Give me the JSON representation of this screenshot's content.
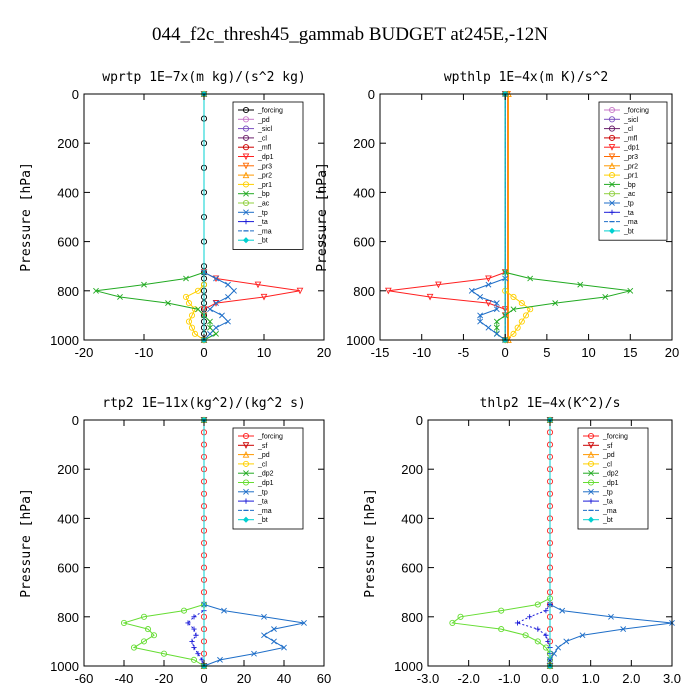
{
  "figure": {
    "title": "044_f2c_thresh45_gammab  BUDGET at245E,-12N",
    "ylabel": "Pressure [hPa]"
  },
  "chart_data": [
    {
      "type": "line",
      "title": "wprtp  1E−7x(m kg)/(s^2 kg)",
      "ylabel": "Pressure [hPa]",
      "xlim": [
        -20,
        20
      ],
      "ylim": [
        1000,
        0
      ],
      "xticks": [
        "-20",
        "-10",
        "0",
        "10",
        "20"
      ],
      "yticks": [
        "0",
        "200",
        "400",
        "600",
        "800",
        "1000"
      ],
      "series": [
        {
          "name": "_forcing",
          "color": "#000000",
          "marker": "o",
          "y": [
            0,
            100,
            200,
            300,
            400,
            500,
            600,
            700,
            725,
            750,
            775,
            800,
            825,
            850,
            875,
            900,
            925,
            950,
            975,
            1000
          ],
          "x": [
            0,
            0,
            0,
            0,
            0,
            0,
            0,
            0,
            0,
            0,
            0,
            0,
            0,
            0,
            0,
            0,
            0,
            0,
            0,
            0
          ]
        },
        {
          "name": "_pd",
          "color": "#c878c8",
          "marker": "o",
          "y": [
            0,
            1000
          ],
          "x": [
            0,
            0
          ]
        },
        {
          "name": "_sicl",
          "color": "#7b4fc0",
          "marker": "o",
          "y": [
            0,
            1000
          ],
          "x": [
            0,
            0
          ]
        },
        {
          "name": "_cl",
          "color": "#6a1f6a",
          "marker": "o",
          "y": [
            0,
            1000
          ],
          "x": [
            0,
            0
          ]
        },
        {
          "name": "_mfl",
          "color": "#cc0000",
          "marker": "o",
          "y": [
            0,
            1000
          ],
          "x": [
            0,
            0
          ]
        },
        {
          "name": "_dp1",
          "color": "#ff2020",
          "marker": "v",
          "y": [
            0,
            725,
            750,
            775,
            800,
            825,
            850,
            875,
            900,
            1000
          ],
          "x": [
            0,
            0,
            2,
            9,
            16,
            10,
            2,
            0,
            0,
            0
          ]
        },
        {
          "name": "_pr3",
          "color": "#ff6a00",
          "marker": "v",
          "y": [
            0,
            1000
          ],
          "x": [
            0,
            0
          ]
        },
        {
          "name": "_pr2",
          "color": "#ff9900",
          "marker": "^",
          "y": [
            0,
            1000
          ],
          "x": [
            0,
            0
          ]
        },
        {
          "name": "_pr1",
          "color": "#ffd000",
          "marker": "o",
          "y": [
            0,
            775,
            800,
            825,
            850,
            875,
            900,
            925,
            950,
            975,
            1000
          ],
          "x": [
            0,
            0,
            -1,
            -3,
            -2.5,
            -1.5,
            -2,
            -2.5,
            -2,
            -1.5,
            0
          ]
        },
        {
          "name": "_bp",
          "color": "#22aa22",
          "marker": "x",
          "y": [
            0,
            725,
            750,
            775,
            800,
            825,
            850,
            875,
            900,
            925,
            950,
            975,
            1000
          ],
          "x": [
            0,
            0,
            -3,
            -10,
            -18,
            -14,
            -6,
            -1,
            0,
            1,
            1,
            2,
            0
          ]
        },
        {
          "name": "_ac",
          "color": "#90d040",
          "marker": "o",
          "y": [
            0,
            1000
          ],
          "x": [
            0,
            0
          ]
        },
        {
          "name": "_tp",
          "color": "#1e6ec8",
          "marker": "x",
          "y": [
            0,
            725,
            750,
            775,
            800,
            825,
            850,
            875,
            900,
            925,
            950,
            975,
            1000
          ],
          "x": [
            0,
            0,
            2,
            4,
            5,
            4,
            2,
            1,
            3,
            4,
            2,
            1,
            0
          ]
        },
        {
          "name": "_ta",
          "color": "#1a1ad8",
          "marker": "+",
          "y": [
            0,
            1000
          ],
          "x": [
            0,
            0
          ]
        },
        {
          "name": "_ma",
          "color": "#1e6ec8",
          "marker": "-",
          "y": [
            0,
            1000
          ],
          "x": [
            0,
            0
          ]
        },
        {
          "name": "_bt",
          "color": "#00d0d0",
          "marker": "d",
          "y": [
            0,
            1000
          ],
          "x": [
            0,
            0
          ]
        }
      ]
    },
    {
      "type": "line",
      "title": "wpthlp  1E−4x(m K)/s^2",
      "ylabel": "Pressure [hPa]",
      "xlim": [
        -15,
        20
      ],
      "ylim": [
        1000,
        0
      ],
      "xticks": [
        "-15",
        "-10",
        "-5",
        "0",
        "5",
        "10",
        "15",
        "20"
      ],
      "yticks": [
        "0",
        "200",
        "400",
        "600",
        "800",
        "1000"
      ],
      "series": [
        {
          "name": "_forcing",
          "color": "#c878c8",
          "marker": "o",
          "y": [
            0,
            1000
          ],
          "x": [
            0,
            0
          ]
        },
        {
          "name": "_sicl",
          "color": "#7b4fc0",
          "marker": "o",
          "y": [
            0,
            1000
          ],
          "x": [
            0,
            0
          ]
        },
        {
          "name": "_cl",
          "color": "#6a1f6a",
          "marker": "o",
          "y": [
            0,
            1000
          ],
          "x": [
            0,
            0
          ]
        },
        {
          "name": "_mfl",
          "color": "#cc0000",
          "marker": "o",
          "y": [
            0,
            1000
          ],
          "x": [
            0,
            0
          ]
        },
        {
          "name": "_dp1",
          "color": "#ff2020",
          "marker": "v",
          "y": [
            0,
            725,
            750,
            775,
            800,
            825,
            850,
            875,
            900,
            1000
          ],
          "x": [
            0,
            0,
            -2,
            -8,
            -14,
            -9,
            -2,
            0,
            0,
            0
          ]
        },
        {
          "name": "_pr3",
          "color": "#ff6a00",
          "marker": "v",
          "y": [
            0,
            1000
          ],
          "x": [
            0.3,
            0.3
          ]
        },
        {
          "name": "_pr2",
          "color": "#ff9900",
          "marker": "^",
          "y": [
            0,
            1000
          ],
          "x": [
            0.4,
            0.4
          ]
        },
        {
          "name": "_pr1",
          "color": "#ffd000",
          "marker": "o",
          "y": [
            0,
            800,
            825,
            850,
            875,
            900,
            925,
            950,
            975,
            1000
          ],
          "x": [
            0,
            0,
            1,
            2,
            3,
            2.5,
            2,
            1.5,
            1,
            0
          ]
        },
        {
          "name": "_bp",
          "color": "#22aa22",
          "marker": "x",
          "y": [
            0,
            725,
            750,
            775,
            800,
            825,
            850,
            875,
            900,
            925,
            950,
            975,
            1000
          ],
          "x": [
            0,
            0,
            3,
            9,
            15,
            12,
            6,
            1,
            0,
            -1,
            -1,
            -1,
            0
          ]
        },
        {
          "name": "_ac",
          "color": "#90d040",
          "marker": "o",
          "y": [
            0,
            1000
          ],
          "x": [
            0,
            0
          ]
        },
        {
          "name": "_tp",
          "color": "#1e6ec8",
          "marker": "x",
          "y": [
            0,
            750,
            775,
            800,
            825,
            850,
            875,
            900,
            925,
            950,
            975,
            1000
          ],
          "x": [
            0,
            0,
            -2,
            -4,
            -3,
            -1,
            -1,
            -3,
            -3,
            -2,
            -1,
            0
          ]
        },
        {
          "name": "_ta",
          "color": "#1a1ad8",
          "marker": "+",
          "y": [
            0,
            1000
          ],
          "x": [
            0,
            0
          ]
        },
        {
          "name": "_ma",
          "color": "#1e6ec8",
          "marker": "-",
          "y": [
            0,
            1000
          ],
          "x": [
            0,
            0
          ]
        },
        {
          "name": "_bt",
          "color": "#00d0d0",
          "marker": "d",
          "y": [
            0,
            1000
          ],
          "x": [
            0,
            0
          ]
        }
      ]
    },
    {
      "type": "line",
      "title": "rtp2  1E−11x(kg^2)/(kg^2 s)",
      "ylabel": "Pressure [hPa]",
      "xlim": [
        -60,
        60
      ],
      "ylim": [
        1000,
        0
      ],
      "xticks": [
        "-60",
        "-40",
        "-20",
        "0",
        "20",
        "40",
        "60"
      ],
      "yticks": [
        "0",
        "200",
        "400",
        "600",
        "800",
        "1000"
      ],
      "series": [
        {
          "name": "_forcing",
          "color": "#ff2020",
          "marker": "o",
          "y": [
            0,
            50,
            100,
            150,
            200,
            250,
            300,
            350,
            400,
            450,
            500,
            550,
            600,
            650,
            700,
            750,
            800,
            850,
            900,
            950,
            1000
          ],
          "x": [
            0,
            0,
            0,
            0,
            0,
            0,
            0,
            0,
            0,
            0,
            0,
            0,
            0,
            0,
            0,
            0,
            0,
            0,
            0,
            0,
            0
          ]
        },
        {
          "name": "_sf",
          "color": "#cc0000",
          "marker": "v",
          "y": [
            0,
            1000
          ],
          "x": [
            0,
            0
          ]
        },
        {
          "name": "_pd",
          "color": "#ff9900",
          "marker": "^",
          "y": [
            0,
            1000
          ],
          "x": [
            0,
            0
          ]
        },
        {
          "name": "_cl",
          "color": "#ffd000",
          "marker": "o",
          "y": [
            0,
            1000
          ],
          "x": [
            0,
            0
          ]
        },
        {
          "name": "_dp2",
          "color": "#22aa22",
          "marker": "x",
          "y": [
            0,
            1000
          ],
          "x": [
            0,
            0
          ]
        },
        {
          "name": "_dp1",
          "color": "#66dd33",
          "marker": "o",
          "y": [
            0,
            750,
            775,
            800,
            825,
            850,
            875,
            900,
            925,
            950,
            975,
            1000
          ],
          "x": [
            0,
            0,
            -10,
            -30,
            -40,
            -28,
            -25,
            -30,
            -35,
            -20,
            -5,
            0
          ]
        },
        {
          "name": "_tp",
          "color": "#1e6ec8",
          "marker": "x",
          "y": [
            0,
            750,
            775,
            800,
            825,
            850,
            875,
            900,
            925,
            950,
            975,
            1000
          ],
          "x": [
            0,
            0,
            10,
            30,
            50,
            35,
            30,
            35,
            40,
            25,
            8,
            0
          ]
        },
        {
          "name": "_ta",
          "color": "#1a1ad8",
          "marker": "+",
          "y": [
            0,
            775,
            800,
            825,
            850,
            875,
            900,
            925,
            950,
            975,
            1000
          ],
          "x": [
            0,
            0,
            -5,
            -8,
            -5,
            -4,
            -6,
            -5,
            -3,
            -1,
            0
          ]
        },
        {
          "name": "_ma",
          "color": "#1e6ec8",
          "marker": "-",
          "y": [
            0,
            1000
          ],
          "x": [
            0,
            0
          ]
        },
        {
          "name": "_bt",
          "color": "#00d0d0",
          "marker": "d",
          "y": [
            0,
            1000
          ],
          "x": [
            0,
            0
          ]
        }
      ]
    },
    {
      "type": "line",
      "title": "thlp2  1E−4x(K^2)/s",
      "ylabel": "Pressure [hPa]",
      "xlim": [
        -3,
        3
      ],
      "ylim": [
        1000,
        0
      ],
      "xticks": [
        "-3.0",
        "-2.0",
        "-1.0",
        "0.0",
        "1.0",
        "2.0",
        "3.0"
      ],
      "yticks": [
        "0",
        "200",
        "400",
        "600",
        "800",
        "1000"
      ],
      "series": [
        {
          "name": "_forcing",
          "color": "#ff2020",
          "marker": "o",
          "y": [
            0,
            50,
            100,
            150,
            200,
            250,
            300,
            350,
            400,
            450,
            500,
            550,
            600,
            650,
            700,
            750,
            800,
            850,
            900,
            950,
            1000
          ],
          "x": [
            0,
            0,
            0,
            0,
            0,
            0,
            0,
            0,
            0,
            0,
            0,
            0,
            0,
            0,
            0,
            0,
            0,
            0,
            0,
            0,
            0
          ]
        },
        {
          "name": "_sf",
          "color": "#cc0000",
          "marker": "v",
          "y": [
            0,
            1000
          ],
          "x": [
            0,
            0
          ]
        },
        {
          "name": "_pd",
          "color": "#ff9900",
          "marker": "^",
          "y": [
            0,
            1000
          ],
          "x": [
            0,
            0
          ]
        },
        {
          "name": "_cl",
          "color": "#ffd000",
          "marker": "o",
          "y": [
            0,
            1000
          ],
          "x": [
            0,
            0
          ]
        },
        {
          "name": "_dp2",
          "color": "#22aa22",
          "marker": "x",
          "y": [
            0,
            1000
          ],
          "x": [
            0,
            0
          ]
        },
        {
          "name": "_dp1",
          "color": "#66dd33",
          "marker": "o",
          "y": [
            0,
            725,
            750,
            775,
            800,
            825,
            850,
            875,
            900,
            925,
            950,
            975,
            1000
          ],
          "x": [
            0,
            0,
            -0.3,
            -1.2,
            -2.2,
            -2.4,
            -1.2,
            -0.6,
            -0.3,
            -0.1,
            0,
            0,
            0
          ]
        },
        {
          "name": "_tp",
          "color": "#1e6ec8",
          "marker": "x",
          "y": [
            0,
            750,
            775,
            800,
            825,
            850,
            875,
            900,
            925,
            950,
            975,
            1000
          ],
          "x": [
            0,
            0,
            0.3,
            1.5,
            3,
            1.8,
            0.8,
            0.4,
            0.2,
            0.1,
            0,
            0
          ]
        },
        {
          "name": "_ta",
          "color": "#1a1ad8",
          "marker": "+",
          "y": [
            0,
            750,
            775,
            800,
            825,
            850,
            875,
            900,
            925,
            950,
            975,
            1000
          ],
          "x": [
            0,
            0,
            -0.1,
            -0.5,
            -0.8,
            -0.3,
            -0.1,
            -0.05,
            0,
            0,
            0,
            0
          ]
        },
        {
          "name": "_ma",
          "color": "#1e6ec8",
          "marker": "-",
          "y": [
            0,
            1000
          ],
          "x": [
            0,
            0
          ]
        },
        {
          "name": "_bt",
          "color": "#00d0d0",
          "marker": "d",
          "y": [
            0,
            1000
          ],
          "x": [
            0,
            0
          ]
        }
      ]
    }
  ]
}
